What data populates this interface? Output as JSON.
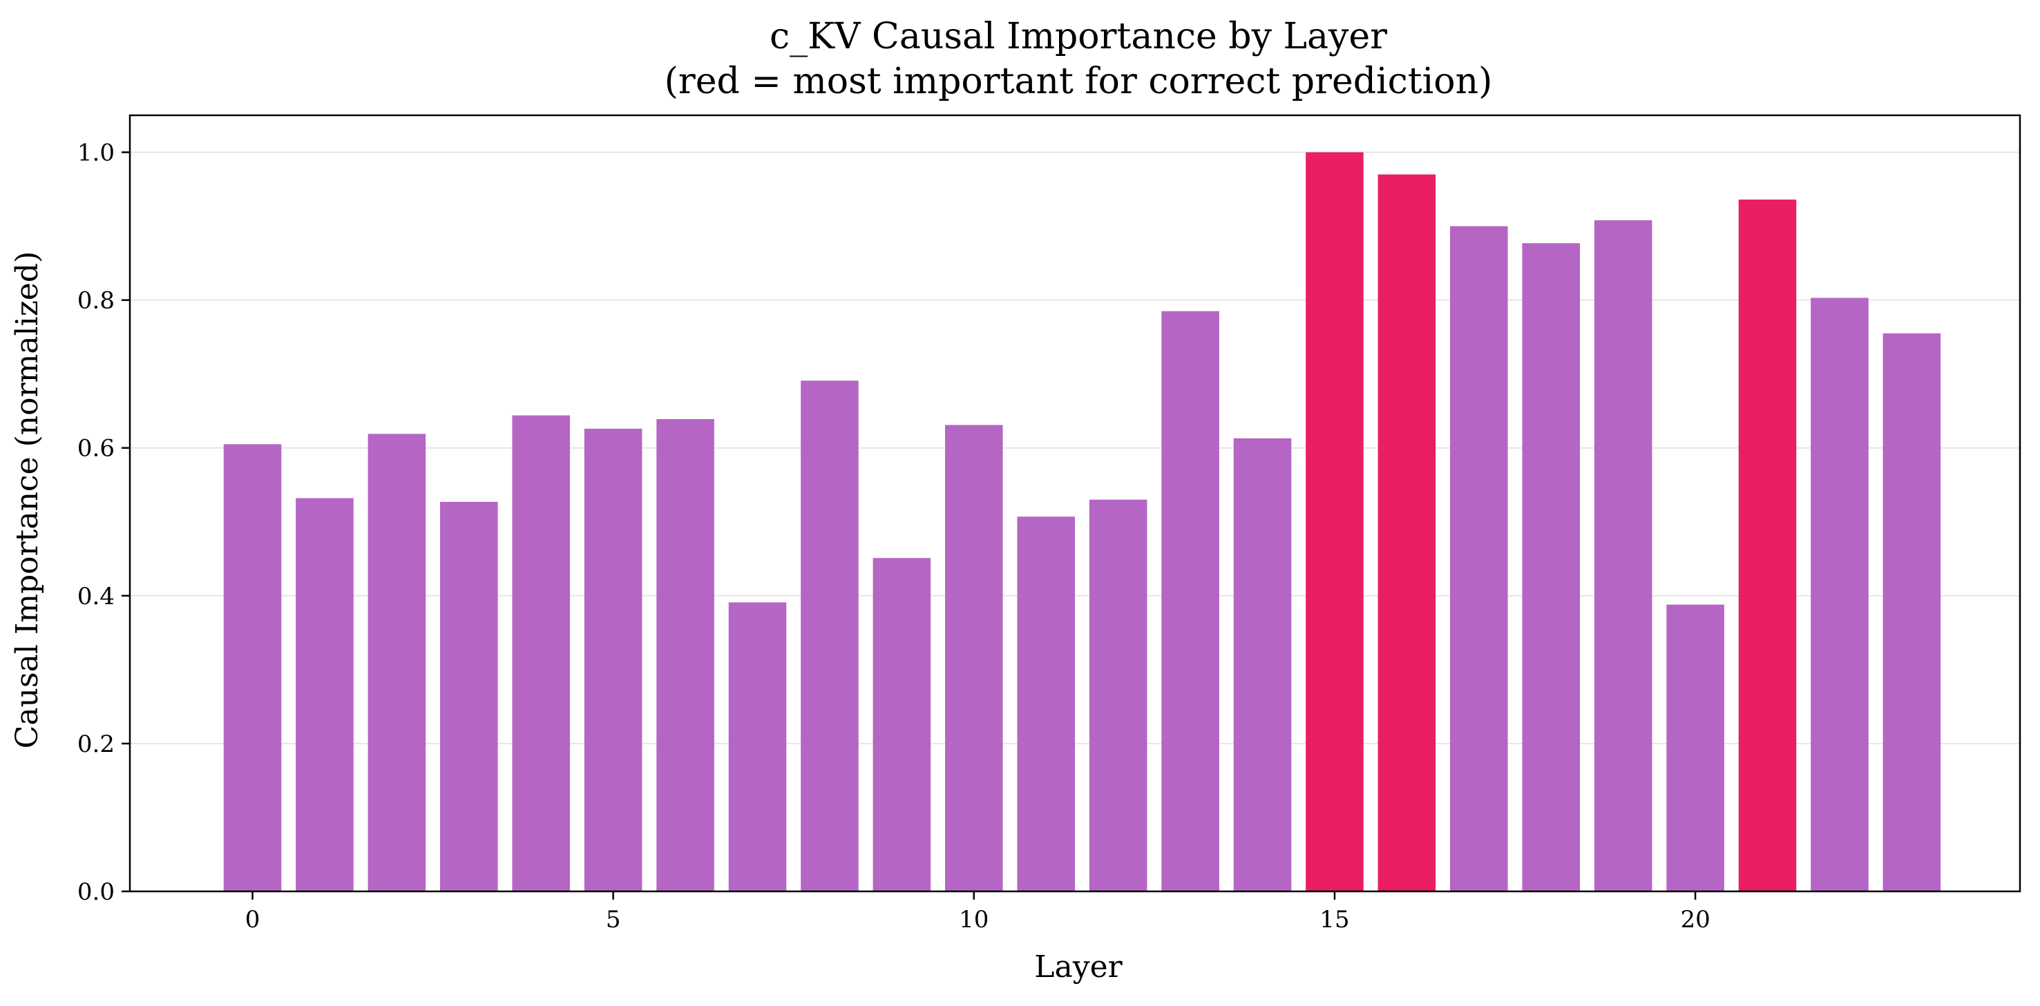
{
  "chart_data": {
    "type": "bar",
    "title_line1": "c_KV Causal Importance by Layer",
    "title_line2": "(red = most important for correct prediction)",
    "xlabel": "Layer",
    "ylabel": "Causal Importance (normalized)",
    "x": [
      0,
      1,
      2,
      3,
      4,
      5,
      6,
      7,
      8,
      9,
      10,
      11,
      12,
      13,
      14,
      15,
      16,
      17,
      18,
      19,
      20,
      21,
      22,
      23
    ],
    "values": [
      0.605,
      0.532,
      0.619,
      0.527,
      0.644,
      0.626,
      0.639,
      0.391,
      0.691,
      0.451,
      0.631,
      0.507,
      0.53,
      0.785,
      0.613,
      1.0,
      0.97,
      0.9,
      0.877,
      0.908,
      0.388,
      0.936,
      0.803,
      0.755
    ],
    "highlighted": [
      15,
      16,
      21
    ],
    "xticks": [
      0,
      5,
      10,
      15,
      20
    ],
    "yticks": [
      0.0,
      0.2,
      0.4,
      0.6,
      0.8,
      1.0
    ],
    "ytick_labels": [
      "0.0",
      "0.2",
      "0.4",
      "0.6",
      "0.8",
      "1.0"
    ],
    "xlim": [
      -1.7,
      24.5
    ],
    "ylim": [
      0,
      1.05
    ],
    "grid": "horizontal",
    "colors": {
      "normal": "#b565c4",
      "highlight": "#e91e63",
      "grid": "#e6e6e6",
      "axis": "#000000"
    }
  }
}
